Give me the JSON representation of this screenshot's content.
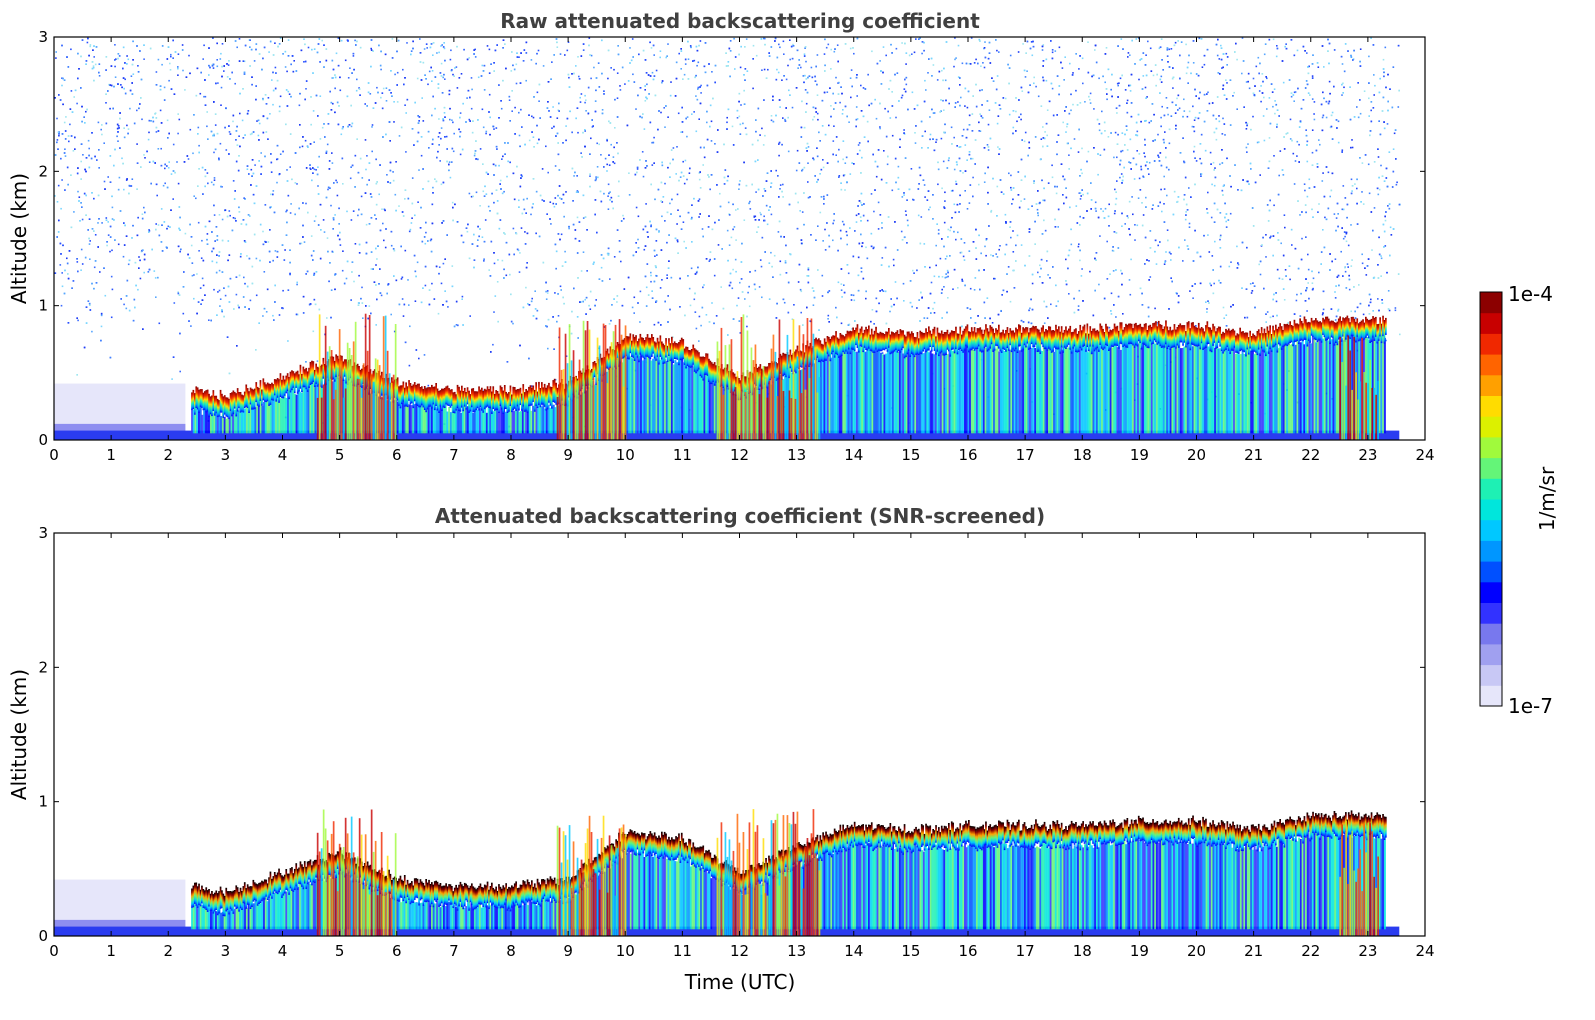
{
  "chart_data": [
    {
      "type": "heatmap",
      "title": "Raw attenuated backscattering coefficient",
      "xlabel": "",
      "ylabel": "Altitude (km)",
      "xlim": [
        0,
        24
      ],
      "ylim": [
        0,
        3
      ],
      "xticks": [
        0,
        1,
        2,
        3,
        4,
        5,
        6,
        7,
        8,
        9,
        10,
        11,
        12,
        13,
        14,
        15,
        16,
        17,
        18,
        19,
        20,
        21,
        22,
        23,
        24
      ],
      "yticks": [
        0,
        1,
        2,
        3
      ],
      "data_coverage_hours": [
        0,
        23.55
      ],
      "screened": false,
      "layer_top_km": {
        "x": [
          2.4,
          3,
          4,
          5,
          6,
          7,
          8,
          9,
          10,
          11,
          12,
          13,
          14,
          15,
          16,
          17,
          18,
          19,
          20,
          21,
          22,
          23
        ],
        "y": [
          0.3,
          0.25,
          0.4,
          0.55,
          0.35,
          0.3,
          0.3,
          0.35,
          0.7,
          0.65,
          0.4,
          0.6,
          0.75,
          0.72,
          0.75,
          0.75,
          0.75,
          0.78,
          0.78,
          0.72,
          0.82,
          0.82
        ]
      }
    },
    {
      "type": "heatmap",
      "title": "Attenuated backscattering coefficient (SNR-screened)",
      "xlabel": "Time (UTC)",
      "ylabel": "Altitude (km)",
      "xlim": [
        0,
        24
      ],
      "ylim": [
        0,
        3
      ],
      "xticks": [
        0,
        1,
        2,
        3,
        4,
        5,
        6,
        7,
        8,
        9,
        10,
        11,
        12,
        13,
        14,
        15,
        16,
        17,
        18,
        19,
        20,
        21,
        22,
        23,
        24
      ],
      "yticks": [
        0,
        1,
        2,
        3
      ],
      "data_coverage_hours": [
        0,
        23.55
      ],
      "screened": true,
      "layer_top_km": {
        "x": [
          2.4,
          3,
          4,
          5,
          6,
          7,
          8,
          9,
          10,
          11,
          12,
          13,
          14,
          15,
          16,
          17,
          18,
          19,
          20,
          21,
          22,
          23
        ],
        "y": [
          0.3,
          0.25,
          0.4,
          0.55,
          0.35,
          0.3,
          0.3,
          0.35,
          0.7,
          0.65,
          0.4,
          0.6,
          0.75,
          0.72,
          0.75,
          0.75,
          0.75,
          0.78,
          0.78,
          0.72,
          0.82,
          0.82
        ]
      }
    }
  ],
  "colorbar": {
    "max_label": "1e-4",
    "min_label": "1e-7",
    "units_label": "1/m/sr",
    "colors": [
      "#e6e6fa",
      "#c8c8f5",
      "#a0a0f0",
      "#7878ee",
      "#3232ff",
      "#0000ff",
      "#0050ff",
      "#0096ff",
      "#00c8ff",
      "#00e6dc",
      "#1ef0b4",
      "#64f578",
      "#a0fa3c",
      "#dcf000",
      "#ffdc00",
      "#ffa000",
      "#ff6400",
      "#f02800",
      "#c80000",
      "#8c0000"
    ],
    "scale": "log"
  }
}
